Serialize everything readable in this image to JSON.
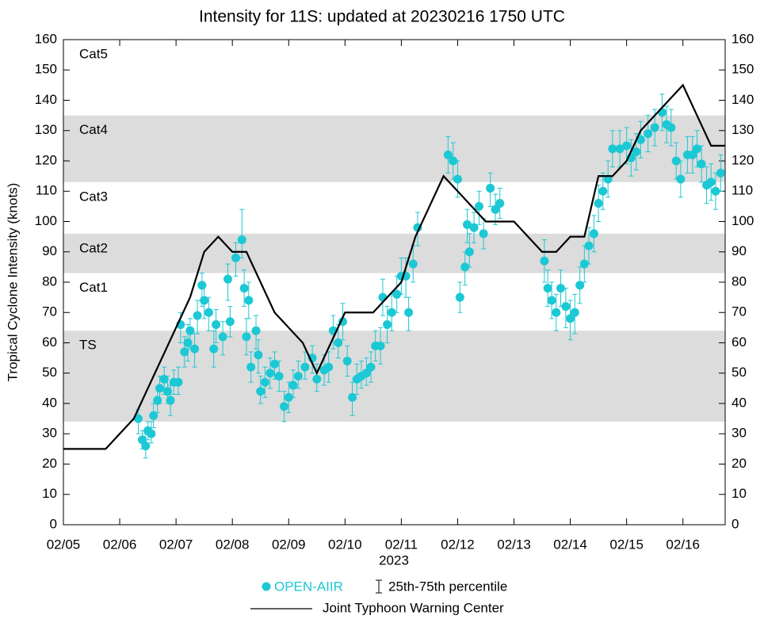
{
  "chart_data": {
    "type": "line",
    "title": "Intensity for 11S: updated at 20230216 1750 UTC",
    "ylabel": "Tropical Cyclone Intensity (knots)",
    "xlabel": "2023",
    "xlim": [
      0,
      11.75
    ],
    "xticks": [
      {
        "value": 0,
        "label": "02/05"
      },
      {
        "value": 1,
        "label": "02/06"
      },
      {
        "value": 2,
        "label": "02/07"
      },
      {
        "value": 3,
        "label": "02/08"
      },
      {
        "value": 4,
        "label": "02/09"
      },
      {
        "value": 5,
        "label": "02/10"
      },
      {
        "value": 6,
        "label": "02/11"
      },
      {
        "value": 7,
        "label": "02/12"
      },
      {
        "value": 8,
        "label": "02/13"
      },
      {
        "value": 9,
        "label": "02/14"
      },
      {
        "value": 10,
        "label": "02/15"
      },
      {
        "value": 11,
        "label": "02/16"
      }
    ],
    "ylim": [
      0,
      160
    ],
    "yticks": [
      0,
      10,
      20,
      30,
      40,
      50,
      60,
      70,
      80,
      90,
      100,
      110,
      120,
      130,
      140,
      150,
      160
    ],
    "intensity_categories": [
      {
        "label": "TS",
        "lower": 34,
        "upper": 64,
        "shaded": true
      },
      {
        "label": "Cat1",
        "lower": 64,
        "upper": 83,
        "shaded": false
      },
      {
        "label": "Cat2",
        "lower": 83,
        "upper": 96,
        "shaded": true
      },
      {
        "label": "Cat3",
        "lower": 96,
        "upper": 113,
        "shaded": false
      },
      {
        "label": "Cat4",
        "lower": 113,
        "upper": 135,
        "shaded": true
      },
      {
        "label": "Cat5",
        "lower": 135,
        "upper": 160,
        "shaded": false
      }
    ],
    "band_color": "#dcdcdc",
    "error_legend": "25th-75th percentile",
    "series": [
      {
        "name": "OPEN-AIIR",
        "type": "scatter",
        "color": "#1cc8d4",
        "x": [
          1.33,
          1.4,
          1.46,
          1.5,
          1.56,
          1.6,
          1.67,
          1.71,
          1.79,
          1.85,
          1.9,
          1.96,
          2.04,
          2.08,
          2.15,
          2.21,
          2.25,
          2.33,
          2.38,
          2.46,
          2.5,
          2.58,
          2.67,
          2.71,
          2.83,
          2.92,
          2.96,
          3.06,
          3.17,
          3.21,
          3.25,
          3.29,
          3.33,
          3.42,
          3.46,
          3.5,
          3.58,
          3.67,
          3.75,
          3.83,
          3.92,
          4.0,
          4.08,
          4.17,
          4.29,
          4.42,
          4.5,
          4.63,
          4.71,
          4.79,
          4.88,
          4.96,
          5.04,
          5.13,
          5.21,
          5.29,
          5.38,
          5.46,
          5.54,
          5.63,
          5.67,
          5.75,
          5.83,
          5.92,
          6.0,
          6.08,
          6.13,
          6.21,
          6.29,
          6.83,
          6.92,
          7.0,
          7.04,
          7.13,
          7.17,
          7.21,
          7.29,
          7.38,
          7.46,
          7.58,
          7.67,
          7.75,
          8.54,
          8.6,
          8.67,
          8.75,
          8.83,
          8.92,
          9.0,
          9.08,
          9.17,
          9.25,
          9.33,
          9.42,
          9.5,
          9.58,
          9.67,
          9.75,
          9.88,
          10.0,
          10.08,
          10.17,
          10.25,
          10.38,
          10.5,
          10.63,
          10.71,
          10.79,
          10.88,
          10.96,
          11.08,
          11.17,
          11.25,
          11.33,
          11.42,
          11.5,
          11.58,
          11.67
        ],
        "values": [
          35,
          28,
          26,
          31,
          30,
          36,
          41,
          45,
          48,
          44,
          41,
          47,
          47,
          66,
          57,
          60,
          64,
          58,
          69,
          79,
          74,
          70,
          58,
          66,
          62,
          81,
          67,
          88,
          94,
          78,
          62,
          74,
          52,
          64,
          56,
          44,
          47,
          50,
          53,
          49,
          39,
          42,
          46,
          49,
          52,
          55,
          48,
          51,
          52,
          64,
          60,
          67,
          54,
          42,
          48,
          49,
          50,
          52,
          59,
          59,
          75,
          66,
          70,
          76,
          82,
          82,
          70,
          86,
          98,
          122,
          120,
          114,
          75,
          85,
          99,
          90,
          98,
          105,
          96,
          111,
          104,
          106,
          87,
          78,
          74,
          70,
          78,
          72,
          68,
          70,
          79,
          86,
          92,
          96,
          106,
          110,
          114,
          124,
          124,
          125,
          121,
          123,
          127,
          129,
          131,
          136,
          132,
          131,
          120,
          114,
          122,
          122,
          124,
          119,
          112,
          113,
          110,
          116
        ],
        "q25": [
          30,
          25,
          22,
          28,
          27,
          32,
          37,
          40,
          43,
          40,
          36,
          43,
          43,
          60,
          52,
          54,
          58,
          52,
          63,
          72,
          68,
          64,
          52,
          60,
          56,
          74,
          62,
          82,
          88,
          72,
          56,
          68,
          47,
          58,
          50,
          40,
          42,
          45,
          48,
          44,
          34,
          37,
          42,
          45,
          48,
          50,
          44,
          46,
          47,
          58,
          55,
          61,
          49,
          36,
          43,
          45,
          46,
          47,
          54,
          53,
          69,
          60,
          64,
          70,
          76,
          75,
          64,
          80,
          92,
          116,
          114,
          108,
          70,
          79,
          93,
          85,
          93,
          99,
          91,
          105,
          99,
          101,
          80,
          72,
          68,
          64,
          72,
          65,
          61,
          63,
          73,
          80,
          86,
          90,
          100,
          104,
          108,
          118,
          118,
          119,
          115,
          117,
          121,
          123,
          125,
          130,
          126,
          125,
          114,
          108,
          116,
          116,
          118,
          113,
          106,
          107,
          104,
          110
        ],
        "q75": [
          38,
          31,
          30,
          34,
          34,
          40,
          45,
          49,
          52,
          49,
          46,
          51,
          52,
          70,
          62,
          66,
          68,
          63,
          74,
          83,
          79,
          75,
          64,
          71,
          67,
          86,
          72,
          93,
          104,
          84,
          68,
          80,
          57,
          69,
          61,
          49,
          52,
          55,
          57,
          54,
          44,
          47,
          51,
          54,
          57,
          59,
          53,
          56,
          57,
          69,
          66,
          73,
          59,
          47,
          53,
          54,
          55,
          57,
          64,
          65,
          81,
          72,
          76,
          82,
          88,
          88,
          75,
          92,
          103,
          128,
          126,
          120,
          80,
          90,
          104,
          96,
          103,
          110,
          101,
          116,
          109,
          111,
          94,
          84,
          80,
          76,
          84,
          78,
          74,
          76,
          85,
          92,
          98,
          102,
          112,
          116,
          120,
          130,
          130,
          131,
          127,
          129,
          133,
          135,
          137,
          142,
          138,
          137,
          126,
          120,
          128,
          128,
          130,
          125,
          118,
          119,
          116,
          122
        ]
      },
      {
        "name": "Joint Typhoon Warning Center",
        "type": "line",
        "color": "#000000",
        "x": [
          0,
          0.75,
          1.25,
          1.75,
          2.25,
          2.5,
          2.75,
          3.0,
          3.25,
          3.75,
          4.25,
          4.5,
          5.0,
          5.5,
          6.0,
          6.25,
          6.75,
          7.5,
          8.0,
          8.5,
          8.75,
          9.0,
          9.25,
          9.5,
          9.75,
          10.0,
          10.25,
          11.0,
          11.5,
          11.75
        ],
        "values": [
          25,
          25,
          35,
          55,
          75,
          90,
          95,
          90,
          90,
          70,
          60,
          50,
          70,
          70,
          80,
          95,
          115,
          100,
          100,
          90,
          90,
          95,
          95,
          115,
          115,
          120,
          130,
          145,
          125,
          125
        ]
      }
    ]
  }
}
